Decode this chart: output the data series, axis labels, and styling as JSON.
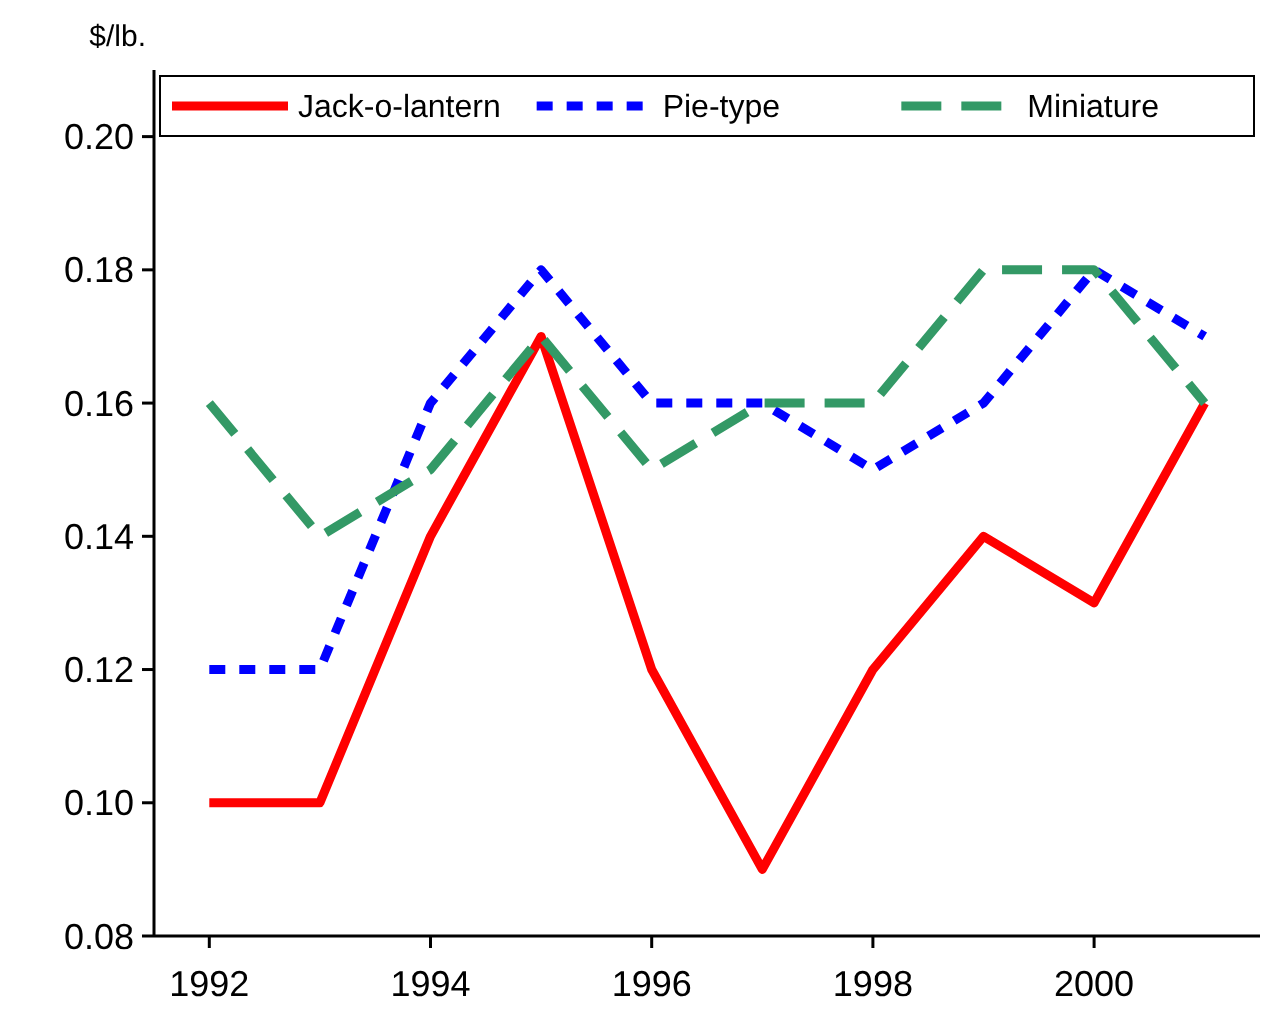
{
  "chart_data": {
    "type": "line",
    "ylabel": "$/lb.",
    "x": [
      1992,
      1993,
      1994,
      1995,
      1996,
      1997,
      1998,
      1999,
      2000,
      2001
    ],
    "xlim": [
      1991.5,
      2001.5
    ],
    "xticks": [
      1992,
      1994,
      1996,
      1998,
      2000
    ],
    "ylim": [
      0.08,
      0.21
    ],
    "yticks": [
      {
        "value": 0.08,
        "label": "0.08"
      },
      {
        "value": 0.1,
        "label": "0.10"
      },
      {
        "value": 0.12,
        "label": "0.12"
      },
      {
        "value": 0.14,
        "label": "0.14"
      },
      {
        "value": 0.16,
        "label": "0.16"
      },
      {
        "value": 0.18,
        "label": "0.18"
      },
      {
        "value": 0.2,
        "label": "0.20"
      }
    ],
    "grid": false,
    "legend": "top",
    "marker": "none",
    "series": [
      {
        "name": "Jack-o-lantern",
        "color": "#ff0000",
        "line_style": "solid",
        "values": [
          0.1,
          0.1,
          0.14,
          0.17,
          0.12,
          0.09,
          0.12,
          0.14,
          0.13,
          0.16
        ]
      },
      {
        "name": "Pie-type",
        "color": "#0000ff",
        "line_style": "dotted",
        "values": [
          0.12,
          0.12,
          0.16,
          0.18,
          0.16,
          0.16,
          0.15,
          0.16,
          0.18,
          0.17
        ]
      },
      {
        "name": "Miniature",
        "color": "#339966",
        "line_style": "dashed",
        "values": [
          0.16,
          0.14,
          0.15,
          0.17,
          0.15,
          0.16,
          0.16,
          0.18,
          0.18,
          0.16
        ]
      }
    ]
  }
}
